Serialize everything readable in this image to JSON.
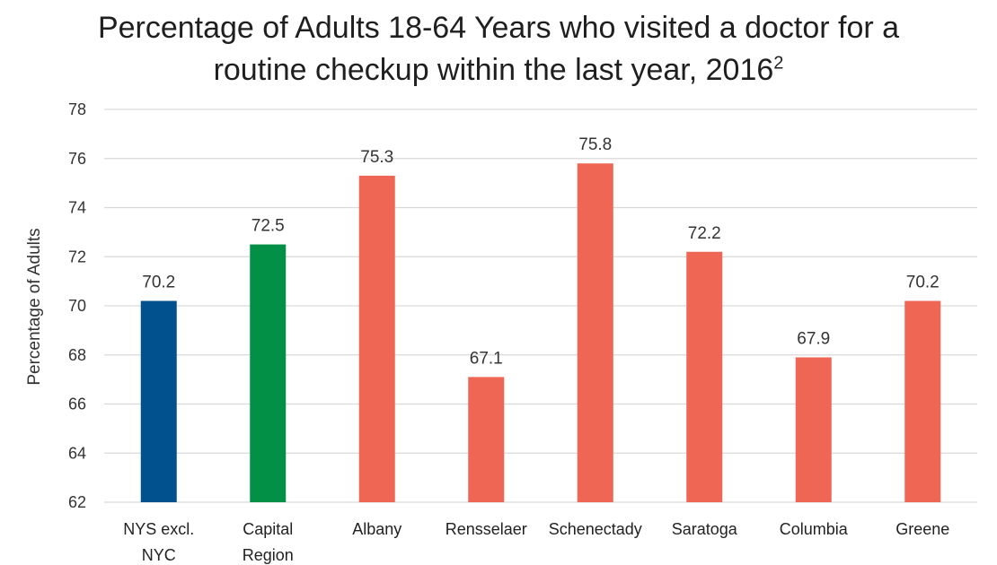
{
  "title": {
    "line1": "Percentage of Adults 18-64 Years who visited a doctor for a",
    "line2": "routine checkup within the last year,  2016",
    "superscript": "2"
  },
  "chart_data": {
    "type": "bar",
    "categories": [
      [
        "NYS excl.",
        "NYC"
      ],
      [
        "Capital",
        "Region"
      ],
      [
        "Albany"
      ],
      [
        "Rensselaer"
      ],
      [
        "Schenectady"
      ],
      [
        "Saratoga"
      ],
      [
        "Columbia"
      ],
      [
        "Greene"
      ]
    ],
    "values": [
      70.2,
      72.5,
      75.3,
      67.1,
      75.8,
      72.2,
      67.9,
      70.2
    ],
    "data_labels": [
      "70.2",
      "72.5",
      "75.3",
      "67.1",
      "75.8",
      "72.2",
      "67.9",
      "70.2"
    ],
    "colors": [
      "#02518f",
      "#029046",
      "#ef6654",
      "#ef6654",
      "#ef6654",
      "#ef6654",
      "#ef6654",
      "#ef6654"
    ],
    "ylabel": "Percentage of Adults",
    "xlabel": "",
    "ylim": [
      62,
      78
    ],
    "yticks": [
      62,
      64,
      66,
      68,
      70,
      72,
      74,
      76,
      78
    ],
    "grid": true,
    "gridline_color": "#d9d9d9"
  }
}
